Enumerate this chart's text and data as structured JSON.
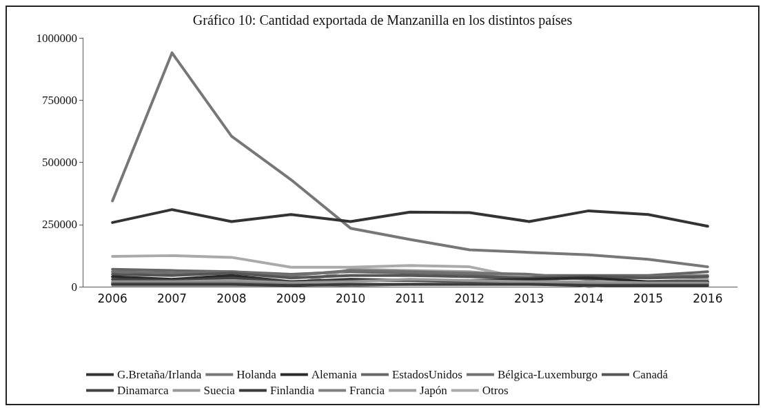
{
  "chart_data": {
    "type": "line",
    "title": "Gráfico 10: Cantidad exportada de Manzanilla en los distintos países",
    "categories": [
      "2006",
      "2007",
      "2008",
      "2009",
      "2010",
      "2011",
      "2012",
      "2013",
      "2014",
      "2015",
      "2016"
    ],
    "series": [
      {
        "name": "G.Bretaña/Irlanda",
        "color": "#333333",
        "values": [
          258000,
          310000,
          262000,
          290000,
          262000,
          300000,
          298000,
          262000,
          305000,
          290000,
          243000
        ]
      },
      {
        "name": "Holanda",
        "color": "#777777",
        "values": [
          345000,
          940000,
          605000,
          430000,
          235000,
          190000,
          148000,
          138000,
          128000,
          110000,
          80000
        ]
      },
      {
        "name": "Alemania",
        "color": "#2a2a2a",
        "values": [
          40000,
          30000,
          45000,
          20000,
          30000,
          25000,
          25000,
          30000,
          35000,
          20000,
          20000
        ]
      },
      {
        "name": "EstadosUnidos",
        "color": "#666666",
        "values": [
          70000,
          65000,
          60000,
          50000,
          60000,
          55000,
          50000,
          45000,
          45000,
          45000,
          60000
        ]
      },
      {
        "name": "Bélgica-Luxemburgo",
        "color": "#707070",
        "values": [
          60000,
          55000,
          60000,
          45000,
          65000,
          60000,
          55000,
          50000,
          30000,
          40000,
          45000
        ]
      },
      {
        "name": "Canadá",
        "color": "#555555",
        "values": [
          50000,
          45000,
          55000,
          35000,
          45000,
          45000,
          40000,
          35000,
          40000,
          35000,
          40000
        ]
      },
      {
        "name": "Dinamarca",
        "color": "#444444",
        "values": [
          30000,
          25000,
          35000,
          20000,
          25000,
          25000,
          20000,
          20000,
          15000,
          15000,
          15000
        ]
      },
      {
        "name": "Suecia",
        "color": "#999999",
        "values": [
          20000,
          20000,
          25000,
          15000,
          20000,
          30000,
          25000,
          20000,
          20000,
          15000,
          15000
        ]
      },
      {
        "name": "Finlandia",
        "color": "#3a3a3a",
        "values": [
          10000,
          10000,
          10000,
          5000,
          10000,
          10000,
          10000,
          10000,
          5000,
          5000,
          5000
        ]
      },
      {
        "name": "Francia",
        "color": "#808080",
        "values": [
          15000,
          15000,
          15000,
          10000,
          5000,
          10000,
          10000,
          10000,
          10000,
          10000,
          10000
        ]
      },
      {
        "name": "Japón",
        "color": "#a0a0a0",
        "values": [
          5000,
          5000,
          5000,
          5000,
          70000,
          65000,
          60000,
          40000,
          0,
          20000,
          30000
        ]
      },
      {
        "name": "Otros",
        "color": "#aaaaaa",
        "values": [
          122000,
          125000,
          118000,
          78000,
          78000,
          85000,
          80000,
          30000,
          10000,
          15000,
          20000
        ]
      }
    ],
    "ylim": [
      0,
      1000000
    ],
    "yticks": [
      0,
      250000,
      500000,
      750000,
      1000000
    ],
    "grid": false,
    "legend": "bottom",
    "marker": "none",
    "line_style": "solid"
  }
}
